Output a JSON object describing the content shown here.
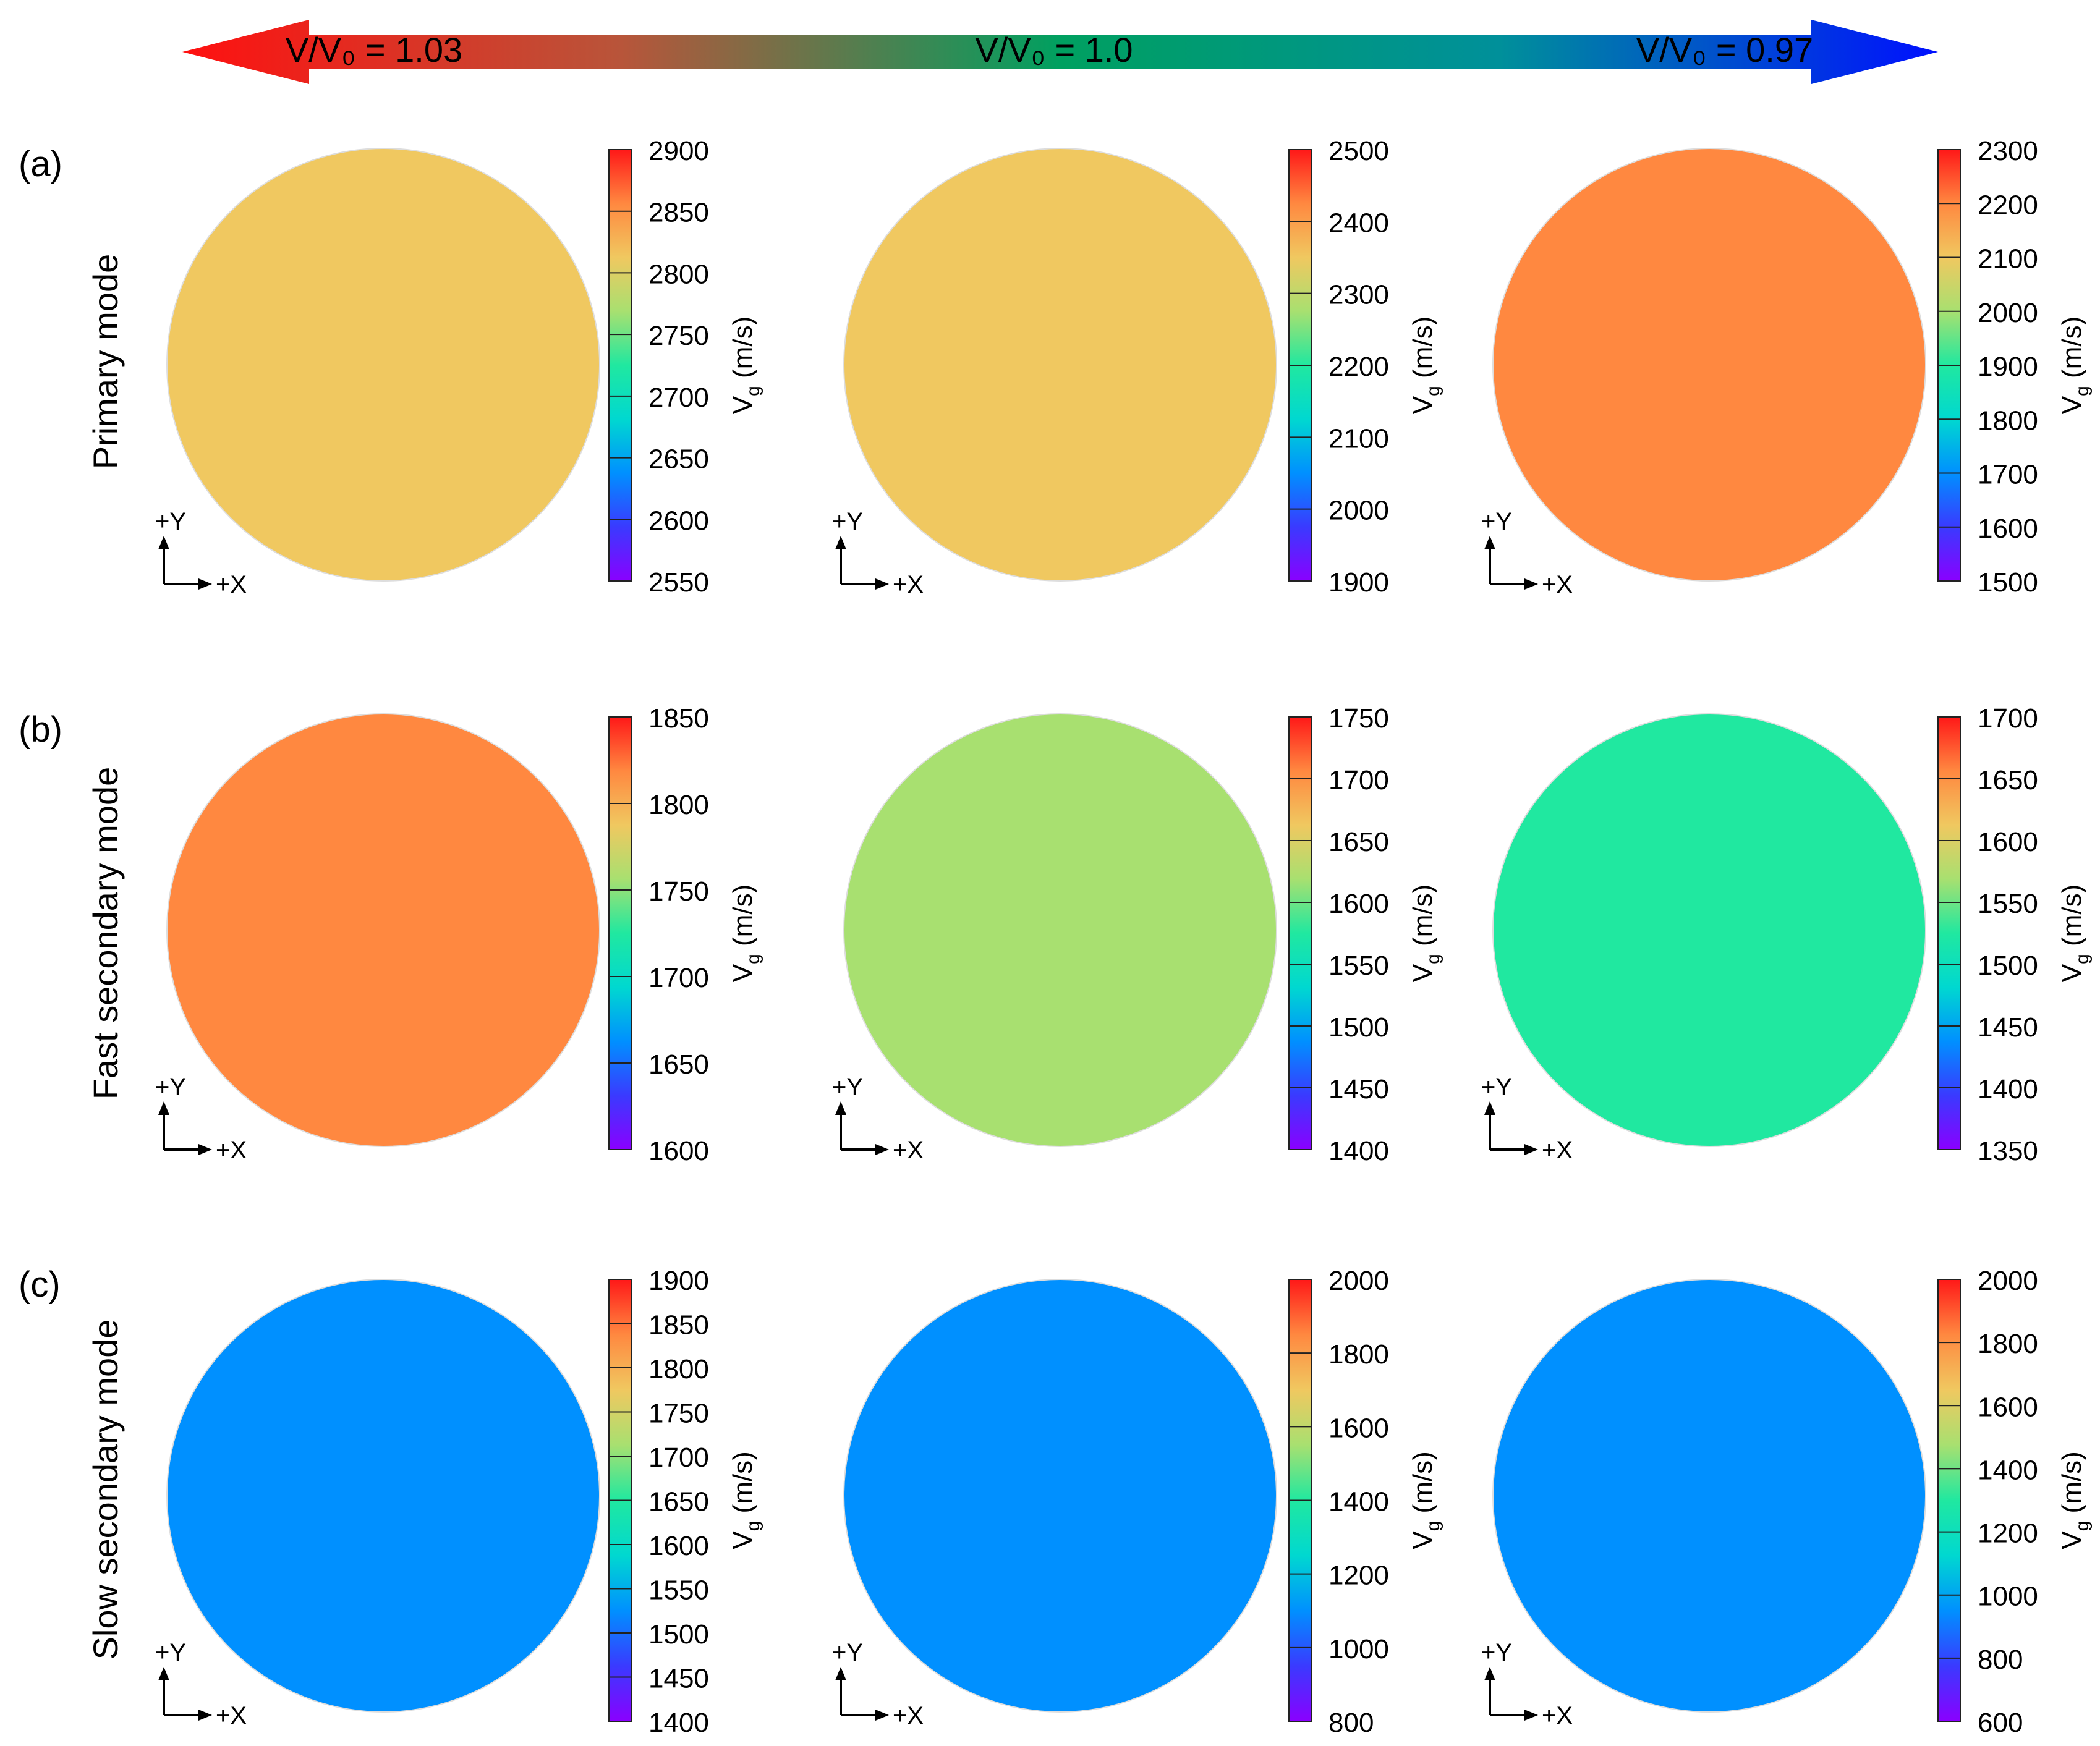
{
  "top_bar": {
    "left_label": "V/V₀ = 1.03",
    "center_label": "V/V₀ = 1.0",
    "right_label": "V/V₀ = 0.97",
    "colors": [
      "#ff1010",
      "#b8553a",
      "#00a060",
      "#00909a",
      "#0010ff"
    ]
  },
  "rows": [
    {
      "panel_label": "(a)",
      "row_label": "Primary mode"
    },
    {
      "panel_label": "(b)",
      "row_label": "Fast secondary mode"
    },
    {
      "panel_label": "(c)",
      "row_label": "Slow secondary mode"
    }
  ],
  "axes_labels": {
    "y": "+Y",
    "x": "+X"
  },
  "colorbar_label_main": "V",
  "colorbar_label_sub": "g",
  "colorbar_label_unit": "(m/s)",
  "colormap": [
    "#8a00ff",
    "#3a3aff",
    "#0090ff",
    "#00d8d0",
    "#20e8a0",
    "#a8e070",
    "#f0c860",
    "#ff8840",
    "#ff1818"
  ],
  "chart_data": [
    {
      "type": "heatmap",
      "mode": "Primary mode",
      "panel": "(a)",
      "ratio": "1.03",
      "pattern": "primary-1",
      "ticks": [
        2900,
        2850,
        2800,
        2750,
        2700,
        2650,
        2600,
        2550
      ],
      "range": [
        2550,
        2900
      ],
      "cbar_label": "Vg (m/s)"
    },
    {
      "type": "heatmap",
      "mode": "Primary mode",
      "panel": "(a)",
      "ratio": "1.0",
      "pattern": "primary-2",
      "ticks": [
        2500,
        2400,
        2300,
        2200,
        2100,
        2000,
        1900
      ],
      "range": [
        1900,
        2500
      ],
      "cbar_label": "Vg (m/s)"
    },
    {
      "type": "heatmap",
      "mode": "Primary mode",
      "panel": "(a)",
      "ratio": "0.97",
      "pattern": "primary-3",
      "ticks": [
        2300,
        2200,
        2100,
        2000,
        1900,
        1800,
        1700,
        1600,
        1500
      ],
      "range": [
        1500,
        2300
      ],
      "cbar_label": "Vg (m/s)"
    },
    {
      "type": "heatmap",
      "mode": "Fast secondary mode",
      "panel": "(b)",
      "ratio": "1.03",
      "pattern": "fast-1",
      "ticks": [
        1850,
        1800,
        1750,
        1700,
        1650,
        1600
      ],
      "range": [
        1600,
        1850
      ],
      "cbar_label": "Vg (m/s)"
    },
    {
      "type": "heatmap",
      "mode": "Fast secondary mode",
      "panel": "(b)",
      "ratio": "1.0",
      "pattern": "fast-2",
      "ticks": [
        1750,
        1700,
        1650,
        1600,
        1550,
        1500,
        1450,
        1400
      ],
      "range": [
        1400,
        1750
      ],
      "cbar_label": "Vg (m/s)"
    },
    {
      "type": "heatmap",
      "mode": "Fast secondary mode",
      "panel": "(b)",
      "ratio": "0.97",
      "pattern": "fast-3",
      "ticks": [
        1700,
        1650,
        1600,
        1550,
        1500,
        1450,
        1400,
        1350
      ],
      "range": [
        1350,
        1700
      ],
      "cbar_label": "Vg (m/s)"
    },
    {
      "type": "heatmap",
      "mode": "Slow secondary mode",
      "panel": "(c)",
      "ratio": "1.03",
      "pattern": "slow-1",
      "ticks": [
        1900,
        1850,
        1800,
        1750,
        1700,
        1650,
        1600,
        1550,
        1500,
        1450,
        1400
      ],
      "range": [
        1400,
        1900
      ],
      "cbar_label": "Vg (m/s)"
    },
    {
      "type": "heatmap",
      "mode": "Slow secondary mode",
      "panel": "(c)",
      "ratio": "1.0",
      "pattern": "slow-2",
      "ticks": [
        2000,
        1800,
        1600,
        1400,
        1200,
        1000,
        800
      ],
      "range": [
        800,
        2000
      ],
      "cbar_label": "Vg (m/s)"
    },
    {
      "type": "heatmap",
      "mode": "Slow secondary mode",
      "panel": "(c)",
      "ratio": "0.97",
      "pattern": "slow-3",
      "ticks": [
        2000,
        1800,
        1600,
        1400,
        1200,
        1000,
        800,
        600
      ],
      "range": [
        600,
        2000
      ],
      "cbar_label": "Vg (m/s)"
    }
  ]
}
